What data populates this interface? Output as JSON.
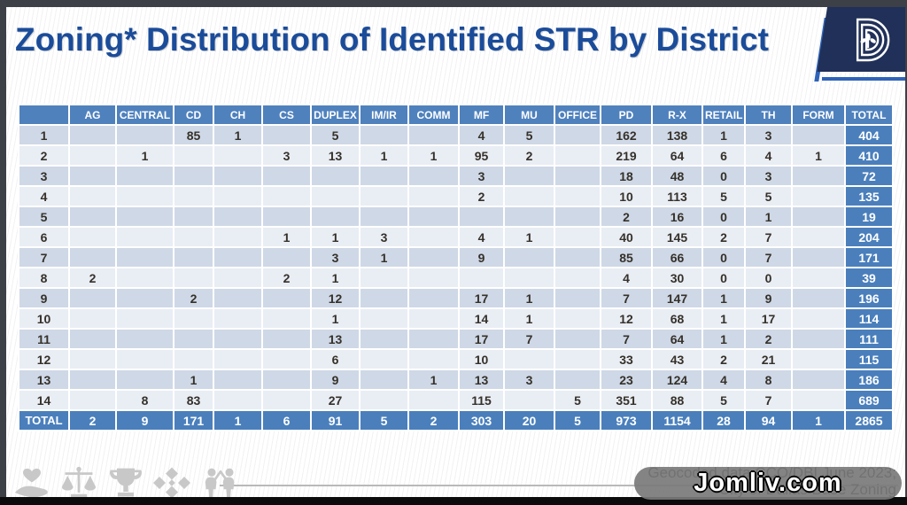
{
  "header": {
    "title": "Zoning* Distribution of Identified STR by District"
  },
  "table": {
    "columns": [
      "",
      "AG",
      "CENTRAL",
      "CD",
      "CH",
      "CS",
      "DUPLEX",
      "IM/IR",
      "COMM",
      "MF",
      "MU",
      "OFFICE",
      "PD",
      "R-X",
      "RETAIL",
      "TH",
      "FORM",
      "TOTAL"
    ],
    "rows": [
      {
        "district": "1",
        "cells": [
          "",
          "",
          "85",
          "1",
          "",
          "5",
          "",
          "",
          "4",
          "5",
          "",
          "162",
          "138",
          "1",
          "3",
          ""
        ],
        "total": "404"
      },
      {
        "district": "2",
        "cells": [
          "",
          "1",
          "",
          "",
          "3",
          "13",
          "1",
          "1",
          "95",
          "2",
          "",
          "219",
          "64",
          "6",
          "4",
          "1"
        ],
        "total": "410"
      },
      {
        "district": "3",
        "cells": [
          "",
          "",
          "",
          "",
          "",
          "",
          "",
          "",
          "3",
          "",
          "",
          "18",
          "48",
          "0",
          "3",
          ""
        ],
        "total": "72"
      },
      {
        "district": "4",
        "cells": [
          "",
          "",
          "",
          "",
          "",
          "",
          "",
          "",
          "2",
          "",
          "",
          "10",
          "113",
          "5",
          "5",
          ""
        ],
        "total": "135"
      },
      {
        "district": "5",
        "cells": [
          "",
          "",
          "",
          "",
          "",
          "",
          "",
          "",
          "",
          "",
          "",
          "2",
          "16",
          "0",
          "1",
          ""
        ],
        "total": "19"
      },
      {
        "district": "6",
        "cells": [
          "",
          "",
          "",
          "",
          "1",
          "1",
          "3",
          "",
          "4",
          "1",
          "",
          "40",
          "145",
          "2",
          "7",
          ""
        ],
        "total": "204"
      },
      {
        "district": "7",
        "cells": [
          "",
          "",
          "",
          "",
          "",
          "3",
          "1",
          "",
          "9",
          "",
          "",
          "85",
          "66",
          "0",
          "7",
          ""
        ],
        "total": "171"
      },
      {
        "district": "8",
        "cells": [
          "2",
          "",
          "",
          "",
          "2",
          "1",
          "",
          "",
          "",
          "",
          "",
          "4",
          "30",
          "0",
          "0",
          ""
        ],
        "total": "39"
      },
      {
        "district": "9",
        "cells": [
          "",
          "",
          "2",
          "",
          "",
          "12",
          "",
          "",
          "17",
          "1",
          "",
          "7",
          "147",
          "1",
          "9",
          ""
        ],
        "total": "196"
      },
      {
        "district": "10",
        "cells": [
          "",
          "",
          "",
          "",
          "",
          "1",
          "",
          "",
          "14",
          "1",
          "",
          "12",
          "68",
          "1",
          "17",
          ""
        ],
        "total": "114"
      },
      {
        "district": "11",
        "cells": [
          "",
          "",
          "",
          "",
          "",
          "13",
          "",
          "",
          "17",
          "7",
          "",
          "7",
          "64",
          "1",
          "2",
          ""
        ],
        "total": "111"
      },
      {
        "district": "12",
        "cells": [
          "",
          "",
          "",
          "",
          "",
          "6",
          "",
          "",
          "10",
          "",
          "",
          "33",
          "43",
          "2",
          "21",
          ""
        ],
        "total": "115"
      },
      {
        "district": "13",
        "cells": [
          "",
          "",
          "1",
          "",
          "",
          "9",
          "",
          "1",
          "13",
          "3",
          "",
          "23",
          "124",
          "4",
          "8",
          ""
        ],
        "total": "186"
      },
      {
        "district": "14",
        "cells": [
          "",
          "8",
          "83",
          "",
          "",
          "27",
          "",
          "",
          "115",
          "",
          "5",
          "351",
          "88",
          "5",
          "7",
          ""
        ],
        "total": "689"
      }
    ],
    "total_row": {
      "label": "TOTAL",
      "cells": [
        "2",
        "9",
        "171",
        "1",
        "6",
        "91",
        "5",
        "2",
        "303",
        "20",
        "5",
        "973",
        "1154",
        "28",
        "94",
        "1"
      ],
      "total": "2865"
    }
  },
  "footer": {
    "source_line1": "Geocoded data CCO/DBI June 2023;",
    "source_line2": "*City of Dallas Base Zoning",
    "icon_names": [
      "hand-heart-icon",
      "scales-icon",
      "trophy-icon",
      "equity-pattern-icon",
      "teamwork-icon"
    ]
  },
  "watermark": {
    "text": "Jomliv.com"
  },
  "colors": {
    "header_blue": "#4f81bd",
    "total_blue": "#4a7fbc",
    "row_dark": "#cfd8e6",
    "row_light": "#e9edf4",
    "title_blue": "#1b4c9a",
    "logo_navy": "#203058",
    "logo_stripe_blue": "#2e63b8"
  }
}
